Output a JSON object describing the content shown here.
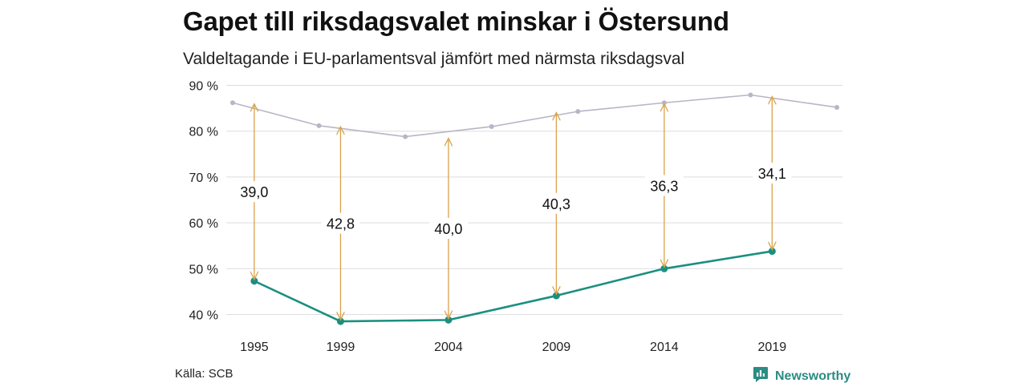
{
  "title": "Gapet till riksdagsvalet minskar i Östersund",
  "subtitle": "Valdeltagande i EU-parlamentsval jämfört med närmsta riksdagsval",
  "source": "Källa: SCB",
  "brand": "Newsworthy",
  "colors": {
    "eu_line": "#1a8f80",
    "riksdag_line": "#b9b5c6",
    "arrow": "#d9a24c",
    "grid": "#dddddd",
    "brand": "#2a8c82"
  },
  "chart_data": {
    "type": "line",
    "x_ticks": [
      1995,
      1999,
      2004,
      2009,
      2014,
      2019
    ],
    "x_range": [
      1994,
      2022
    ],
    "y_ticks": [
      40,
      50,
      60,
      70,
      80,
      90
    ],
    "y_tick_labels": [
      "40 %",
      "50 %",
      "60 %",
      "70 %",
      "80 %",
      "90 %"
    ],
    "ylim": [
      38,
      91
    ],
    "grid": true,
    "series": [
      {
        "key": "riksdag",
        "x": [
          1994,
          1998,
          2002,
          2006,
          2010,
          2014,
          2018,
          2022
        ],
        "y": [
          86.2,
          81.2,
          78.8,
          81.0,
          84.3,
          86.2,
          87.9,
          85.2
        ]
      },
      {
        "key": "eu",
        "x": [
          1995,
          1999,
          2004,
          2009,
          2014,
          2019
        ],
        "y": [
          47.3,
          38.5,
          38.8,
          44.1,
          50.0,
          53.8
        ]
      }
    ],
    "gaps": [
      {
        "year": 1995,
        "label": "39,0",
        "top": 86.3,
        "bottom": 47.3
      },
      {
        "year": 1999,
        "label": "42,8",
        "top": 81.3,
        "bottom": 38.5
      },
      {
        "year": 2004,
        "label": "40,0",
        "top": 78.8,
        "bottom": 38.8
      },
      {
        "year": 2009,
        "label": "40,3",
        "top": 84.4,
        "bottom": 44.1
      },
      {
        "year": 2014,
        "label": "36,3",
        "top": 86.3,
        "bottom": 50.0
      },
      {
        "year": 2019,
        "label": "34,1",
        "top": 87.9,
        "bottom": 53.8
      }
    ]
  }
}
